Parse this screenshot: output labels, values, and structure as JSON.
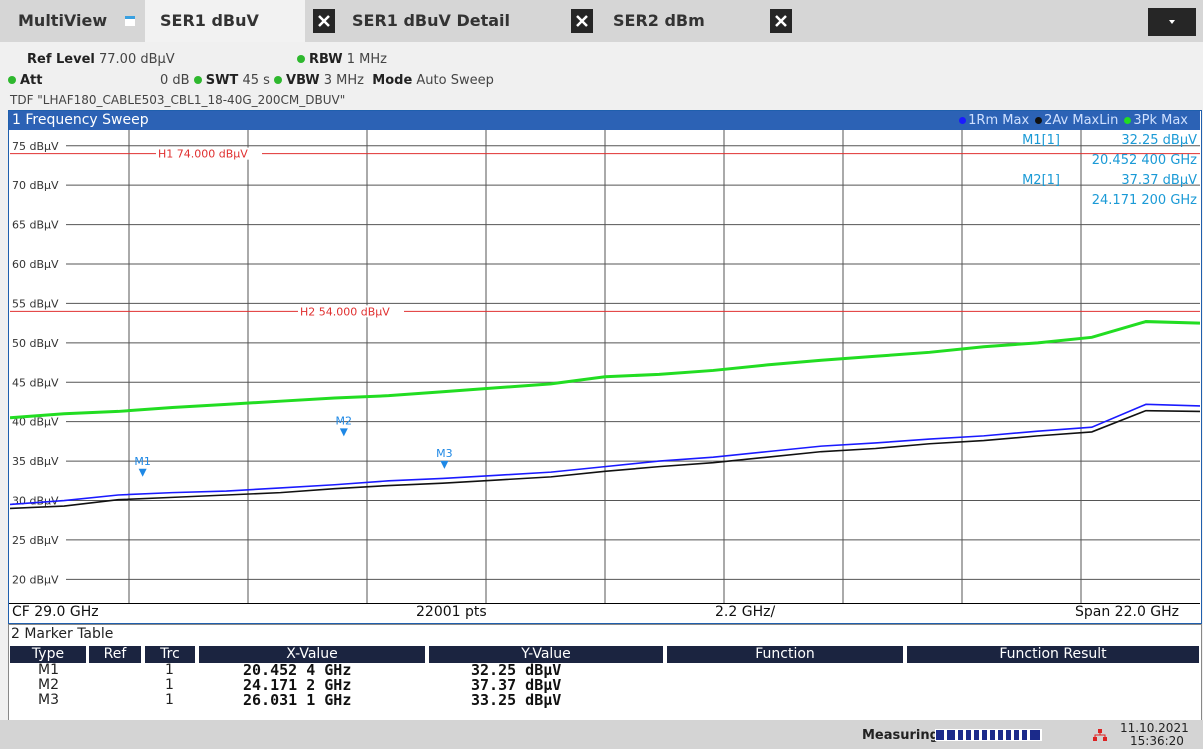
{
  "tabs": {
    "app": "MultiView",
    "items": [
      "SER1 dBuV",
      "SER1 dBuV Detail",
      "SER2 dBm"
    ]
  },
  "settings": {
    "ref_level_label": "Ref Level",
    "ref_level": "77.00 dBµV",
    "rbw_label": "RBW",
    "rbw": "1 MHz",
    "att_label": "Att",
    "att": "0 dB",
    "swt_label": "SWT",
    "swt": "45 s",
    "vbw_label": "VBW",
    "vbw": "3 MHz",
    "mode_label": "Mode",
    "mode": "Auto Sweep",
    "tdf": "TDF \"LHAF180_CABLE503_CBL1_18-40G_200CM_DBUV\""
  },
  "chart_data": {
    "type": "line",
    "title": "1 Frequency Sweep",
    "x": [
      18,
      19,
      20,
      21,
      22,
      23,
      24,
      25,
      26,
      27,
      28,
      29,
      30,
      31,
      32,
      33,
      34,
      35,
      36,
      37,
      38,
      39,
      40
    ],
    "series": [
      {
        "name": "1Rm Max",
        "color": "#1a1aff",
        "values": [
          29.5,
          30,
          30.7,
          31,
          31.2,
          31.6,
          32,
          32.5,
          32.8,
          33.2,
          33.6,
          34.3,
          35,
          35.5,
          36.2,
          36.9,
          37.3,
          37.8,
          38.2,
          38.8,
          39.3,
          42.2,
          42
        ]
      },
      {
        "name": "2Av MaxLin",
        "color": "#111111",
        "values": [
          29,
          29.3,
          30.1,
          30.4,
          30.7,
          31,
          31.5,
          31.9,
          32.2,
          32.6,
          33,
          33.7,
          34.3,
          34.8,
          35.5,
          36.2,
          36.6,
          37.2,
          37.6,
          38.2,
          38.7,
          41.4,
          41.3
        ]
      },
      {
        "name": "3Pk Max",
        "color": "#22dd22",
        "values": [
          40.5,
          41,
          41.3,
          41.8,
          42.2,
          42.6,
          43,
          43.3,
          43.8,
          44.3,
          44.8,
          45.7,
          46,
          46.5,
          47.2,
          47.8,
          48.3,
          48.8,
          49.5,
          50,
          50.7,
          52.7,
          52.5
        ]
      }
    ],
    "xlim": [
      18,
      40
    ],
    "ylim": [
      17,
      77
    ],
    "yticks": [
      {
        "value": 75,
        "label": "75 dBµV"
      },
      {
        "value": 70,
        "label": "70 dBµV"
      },
      {
        "value": 65,
        "label": "65 dBµV"
      },
      {
        "value": 60,
        "label": "60 dBµV"
      },
      {
        "value": 55,
        "label": "55 dBµV"
      },
      {
        "value": 50,
        "label": "50 dBµV"
      },
      {
        "value": 45,
        "label": "45 dBµV"
      },
      {
        "value": 40,
        "label": "40 dBµV"
      },
      {
        "value": 35,
        "label": "35 dBµV"
      },
      {
        "value": 30,
        "label": "30 dBµV"
      },
      {
        "value": 25,
        "label": "25 dBµV"
      },
      {
        "value": 20,
        "label": "20 dBµV"
      }
    ],
    "grid": true,
    "limit_lines": [
      {
        "label": "H1 74.000 dBµV",
        "value": 74,
        "color": "#e03030"
      },
      {
        "label": "H2 54.000 dBµV",
        "value": 54,
        "color": "#e03030"
      }
    ],
    "markers": [
      {
        "label": "M1",
        "x": 20.4524,
        "y": 32.25
      },
      {
        "label": "M2",
        "x": 24.1712,
        "y": 37.37
      },
      {
        "label": "M3",
        "x": 26.0311,
        "y": 33.25
      }
    ],
    "readouts": [
      {
        "name": "M1[1]",
        "value": "32.25 dBµV",
        "freq": "20.452 400 GHz"
      },
      {
        "name": "M2[1]",
        "value": "37.37 dBµV",
        "freq": "24.171 200 GHz"
      }
    ],
    "footer": [
      "CF 29.0 GHz",
      "22001 pts",
      "2.2 GHz/",
      "Span 22.0 GHz"
    ]
  },
  "marker_table": {
    "title": "2 Marker Table",
    "columns": [
      "Type",
      "Ref",
      "Trc",
      "X-Value",
      "Y-Value",
      "Function",
      "Function Result"
    ],
    "rows": [
      {
        "type": "M1",
        "trc": "1",
        "x": "20.452 4 GHz",
        "y": "32.25 dBµV"
      },
      {
        "type": "M2",
        "trc": "1",
        "x": "24.171 2 GHz",
        "y": "37.37 dBµV"
      },
      {
        "type": "M3",
        "trc": "1",
        "x": "26.031 1 GHz",
        "y": "33.25 dBµV"
      }
    ]
  },
  "status": {
    "text": "Measuring...",
    "date": "11.10.2021",
    "time": "15:36:20"
  }
}
